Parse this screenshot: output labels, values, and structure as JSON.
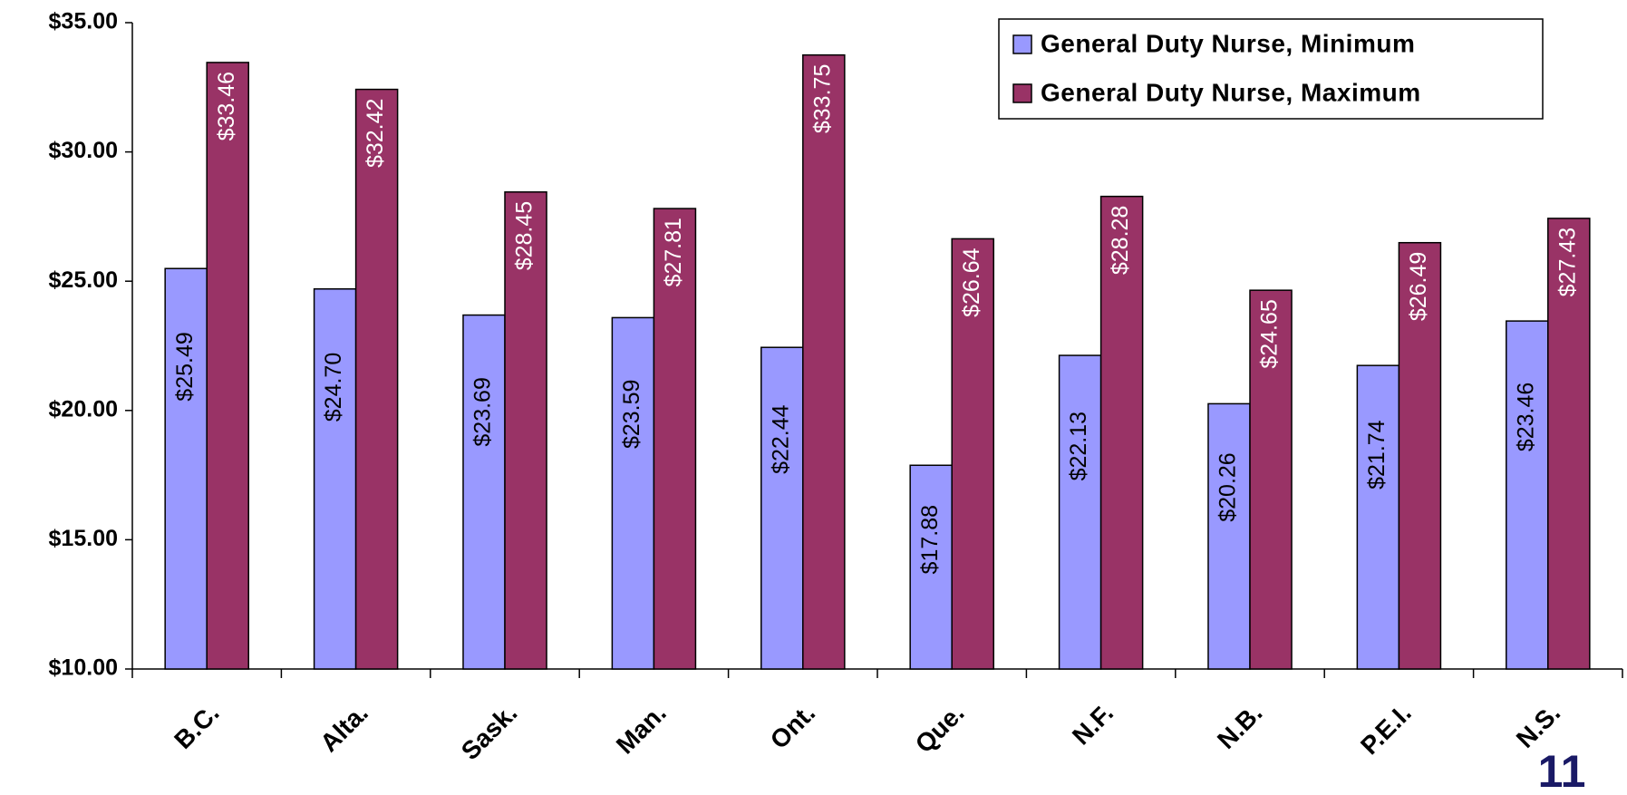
{
  "chart_data": {
    "type": "bar",
    "categories": [
      "B.C.",
      "Alta.",
      "Sask.",
      "Man.",
      "Ont.",
      "Que.",
      "N.F.",
      "N.B.",
      "P.E.I.",
      "N.S."
    ],
    "series": [
      {
        "name": "General Duty Nurse, Minimum",
        "color": "#9999ff",
        "values": [
          25.49,
          24.7,
          23.69,
          23.59,
          22.44,
          17.88,
          22.13,
          20.26,
          21.74,
          23.46
        ],
        "value_labels": [
          "$25.49",
          "$24.70",
          "$23.69",
          "$23.59",
          "$22.44",
          "$17.88",
          "$22.13",
          "$20.26",
          "$21.74",
          "$23.46"
        ]
      },
      {
        "name": "General Duty Nurse, Maximum",
        "color": "#993366",
        "values": [
          33.46,
          32.42,
          28.45,
          27.81,
          33.75,
          26.64,
          28.28,
          24.65,
          26.49,
          27.43
        ],
        "value_labels": [
          "$33.46",
          "$32.42",
          "$28.45",
          "$27.81",
          "$33.75",
          "$26.64",
          "$28.28",
          "$24.65",
          "$26.49",
          "$27.43"
        ]
      }
    ],
    "ylim": [
      10,
      35
    ],
    "yticks": [
      {
        "value": 10,
        "label": "$10.00"
      },
      {
        "value": 15,
        "label": "$15.00"
      },
      {
        "value": 20,
        "label": "$20.00"
      },
      {
        "value": 25,
        "label": "$25.00"
      },
      {
        "value": 30,
        "label": "$30.00"
      },
      {
        "value": 35,
        "label": "$35.00"
      }
    ],
    "legend": "top-right",
    "page_number": "11"
  }
}
